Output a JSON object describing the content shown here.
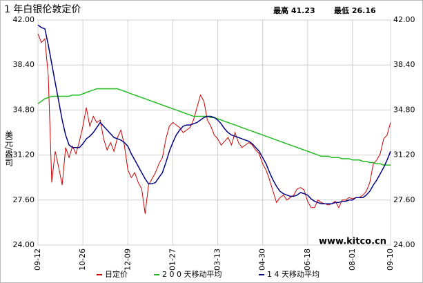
{
  "chart_data": {
    "type": "line",
    "title": "1 年白银伦敦定价",
    "high": "最高 41.23",
    "low": "最低 26.16",
    "y_label": "美元/盎司",
    "watermark": "www.kitco.cn",
    "grid": true,
    "ylim": [
      24,
      42
    ],
    "yticks": [
      {
        "value": 24,
        "label": "24.00"
      },
      {
        "value": 27.6,
        "label": "27.60"
      },
      {
        "value": 31.2,
        "label": "31.20"
      },
      {
        "value": 34.8,
        "label": "34.80"
      },
      {
        "value": 38.4,
        "label": "38.40"
      },
      {
        "value": 42,
        "label": "42.00"
      }
    ],
    "categories": [
      "09-12",
      null,
      null,
      null,
      null,
      null,
      null,
      null,
      null,
      null,
      null,
      null,
      null,
      "10-26",
      null,
      null,
      null,
      null,
      null,
      null,
      null,
      null,
      null,
      null,
      null,
      null,
      "12-09",
      null,
      null,
      null,
      null,
      null,
      null,
      null,
      null,
      null,
      null,
      null,
      null,
      "01-27",
      null,
      null,
      null,
      null,
      null,
      null,
      null,
      null,
      null,
      null,
      null,
      null,
      "03-13",
      null,
      null,
      null,
      null,
      null,
      null,
      null,
      null,
      null,
      null,
      null,
      null,
      "04-30",
      null,
      null,
      null,
      null,
      null,
      null,
      null,
      null,
      null,
      null,
      null,
      null,
      "06-18",
      null,
      null,
      null,
      null,
      null,
      null,
      null,
      null,
      null,
      null,
      null,
      null,
      "08-01",
      null,
      null,
      null,
      null,
      null,
      null,
      null,
      null,
      null,
      null,
      "09-10"
    ],
    "series": [
      {
        "name": "日定价",
        "color": "#cc0000",
        "values": [
          40.9,
          40.2,
          40.5,
          37.5,
          29.0,
          31.5,
          30.2,
          28.8,
          31.8,
          31.0,
          31.9,
          31.3,
          32.3,
          33.5,
          35.0,
          33.5,
          34.3,
          33.8,
          34.0,
          32.5,
          31.6,
          32.2,
          31.5,
          32.6,
          33.2,
          32.0,
          30.0,
          29.4,
          29.8,
          29.0,
          28.5,
          26.5,
          28.8,
          29.3,
          29.8,
          30.5,
          31.0,
          32.5,
          33.5,
          33.8,
          33.6,
          33.4,
          33.0,
          33.2,
          33.4,
          34.0,
          35.0,
          36.0,
          35.5,
          34.0,
          33.5,
          32.8,
          32.5,
          32.0,
          32.3,
          32.6,
          32.0,
          33.0,
          32.2,
          31.8,
          32.0,
          32.2,
          32.0,
          31.6,
          31.3,
          30.5,
          30.0,
          29.2,
          28.3,
          27.4,
          27.8,
          28.0,
          27.6,
          27.8,
          28.0,
          28.5,
          28.6,
          28.4,
          27.5,
          27.0,
          27.0,
          27.6,
          27.4,
          27.3,
          27.2,
          27.3,
          27.5,
          27.0,
          27.6,
          27.6,
          27.8,
          27.7,
          27.8,
          27.8,
          28.0,
          28.3,
          29.0,
          30.5,
          30.8,
          31.3,
          32.5,
          32.8,
          33.8
        ]
      },
      {
        "name": "2 0 0 天移动平均",
        "color": "#22bb22",
        "values": [
          35.3,
          35.5,
          35.7,
          35.8,
          35.9,
          35.9,
          35.9,
          35.9,
          35.9,
          35.9,
          36.0,
          36.0,
          36.0,
          36.1,
          36.2,
          36.3,
          36.4,
          36.5,
          36.5,
          36.5,
          36.5,
          36.5,
          36.5,
          36.5,
          36.4,
          36.3,
          36.2,
          36.1,
          36.0,
          35.9,
          35.8,
          35.7,
          35.6,
          35.5,
          35.4,
          35.3,
          35.2,
          35.1,
          35.0,
          34.9,
          34.8,
          34.7,
          34.6,
          34.5,
          34.4,
          34.3,
          34.3,
          34.3,
          34.3,
          34.3,
          34.2,
          34.2,
          34.1,
          34.0,
          33.9,
          33.8,
          33.7,
          33.6,
          33.5,
          33.4,
          33.3,
          33.2,
          33.1,
          33.0,
          32.9,
          32.8,
          32.7,
          32.6,
          32.5,
          32.4,
          32.3,
          32.2,
          32.1,
          32.0,
          31.9,
          31.8,
          31.7,
          31.6,
          31.5,
          31.4,
          31.3,
          31.2,
          31.1,
          31.1,
          31.1,
          31.0,
          31.0,
          31.0,
          30.9,
          30.9,
          30.9,
          30.8,
          30.8,
          30.8,
          30.7,
          30.7,
          30.6,
          30.6,
          30.5,
          30.5,
          30.4,
          30.4,
          30.4
        ]
      },
      {
        "name": "1 4 天移动平均",
        "color": "#000080",
        "values": [
          41.6,
          41.4,
          41.3,
          40.0,
          38.5,
          37.0,
          35.5,
          34.0,
          32.8,
          32.0,
          31.8,
          31.8,
          31.8,
          32.1,
          32.5,
          32.7,
          33.0,
          33.4,
          33.8,
          33.5,
          33.2,
          32.9,
          32.6,
          32.5,
          32.4,
          32.2,
          31.9,
          31.3,
          30.8,
          30.3,
          29.8,
          29.3,
          28.9,
          28.9,
          29.0,
          29.4,
          29.8,
          30.6,
          31.5,
          32.2,
          32.8,
          33.2,
          33.5,
          33.6,
          33.6,
          33.7,
          33.8,
          34.0,
          34.2,
          34.3,
          34.3,
          34.2,
          34.0,
          33.7,
          33.3,
          33.0,
          32.8,
          32.7,
          32.6,
          32.5,
          32.4,
          32.3,
          32.1,
          31.8,
          31.5,
          31.0,
          30.5,
          29.8,
          29.2,
          28.7,
          28.3,
          28.1,
          28.0,
          27.9,
          27.9,
          28.0,
          28.2,
          28.1,
          28.0,
          27.7,
          27.5,
          27.4,
          27.3,
          27.3,
          27.3,
          27.3,
          27.4,
          27.4,
          27.5,
          27.5,
          27.6,
          27.6,
          27.8,
          27.8,
          27.8,
          28.0,
          28.3,
          28.8,
          29.2,
          29.7,
          30.2,
          30.8,
          31.5
        ]
      }
    ]
  }
}
